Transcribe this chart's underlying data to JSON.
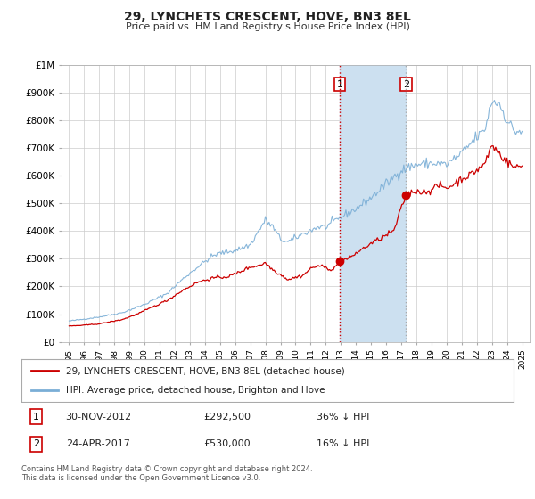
{
  "title": "29, LYNCHETS CRESCENT, HOVE, BN3 8EL",
  "subtitle": "Price paid vs. HM Land Registry's House Price Index (HPI)",
  "legend_line1": "29, LYNCHETS CRESCENT, HOVE, BN3 8EL (detached house)",
  "legend_line2": "HPI: Average price, detached house, Brighton and Hove",
  "transaction1_date": "30-NOV-2012",
  "transaction1_price": "£292,500",
  "transaction1_hpi": "36% ↓ HPI",
  "transaction1_year": 2012.92,
  "transaction1_value": 292500,
  "transaction2_date": "24-APR-2017",
  "transaction2_price": "£530,000",
  "transaction2_hpi": "16% ↓ HPI",
  "transaction2_year": 2017.31,
  "transaction2_value": 530000,
  "hpi_color": "#7aaed6",
  "price_color": "#cc0000",
  "vline1_color": "#cc0000",
  "vline2_color": "#aaaaaa",
  "shade_color": "#cce0f0",
  "background_color": "#ffffff",
  "grid_color": "#cccccc",
  "footnote": "Contains HM Land Registry data © Crown copyright and database right 2024.\nThis data is licensed under the Open Government Licence v3.0.",
  "ylim": [
    0,
    1000000
  ],
  "xlim": [
    1994.5,
    2025.5
  ],
  "ytick_labels": [
    "£0",
    "£100K",
    "£200K",
    "£300K",
    "£400K",
    "£500K",
    "£600K",
    "£700K",
    "£800K",
    "£900K",
    "£1M"
  ],
  "ytick_values": [
    0,
    100000,
    200000,
    300000,
    400000,
    500000,
    600000,
    700000,
    800000,
    900000,
    1000000
  ]
}
